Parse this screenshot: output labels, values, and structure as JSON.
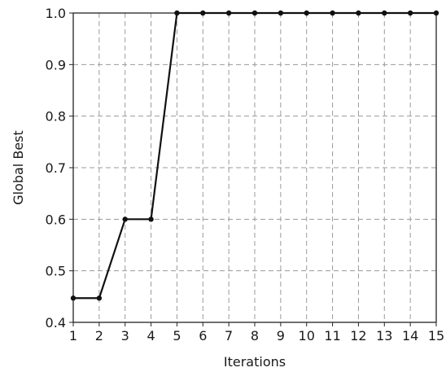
{
  "chart_data": {
    "type": "line",
    "title": "",
    "xlabel": "Iterations",
    "ylabel": "Global Best",
    "xlim": [
      1,
      15
    ],
    "ylim": [
      0.4,
      1.0
    ],
    "x_ticks": [
      1,
      2,
      3,
      4,
      5,
      6,
      7,
      8,
      9,
      10,
      11,
      12,
      13,
      14,
      15
    ],
    "y_ticks": [
      "0.4",
      "0.5",
      "0.6",
      "0.7",
      "0.8",
      "0.9",
      "1.0"
    ],
    "grid": true,
    "grid_style": "dashed",
    "series": [
      {
        "color": "#111111",
        "marker": "dot",
        "x": [
          1,
          2,
          3,
          4,
          5,
          6,
          7,
          8,
          9,
          10,
          11,
          12,
          13,
          14,
          15
        ],
        "y": [
          0.447,
          0.447,
          0.6,
          0.6,
          1.0,
          1.0,
          1.0,
          1.0,
          1.0,
          1.0,
          1.0,
          1.0,
          1.0,
          1.0,
          1.0
        ]
      }
    ]
  }
}
